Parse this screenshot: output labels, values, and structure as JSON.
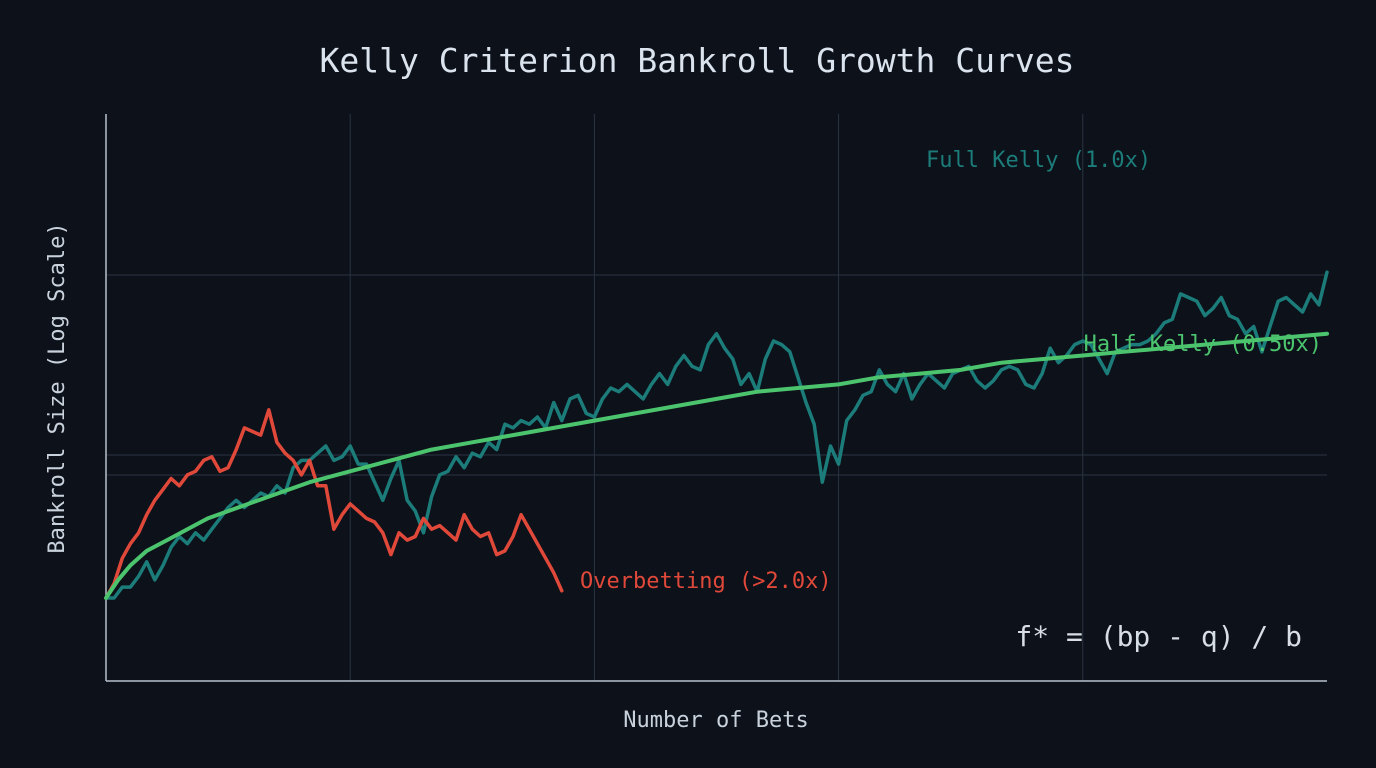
{
  "chart_data": {
    "type": "line",
    "title": "Kelly Criterion Bankroll Growth Curves",
    "xlabel": "Number of Bets",
    "ylabel": "Bankroll Size (Log Scale)",
    "y_scale": "log",
    "xlim": [
      0,
      300
    ],
    "ylim": [
      0,
      100
    ],
    "grid": true,
    "legend": "inline labels at line ends",
    "annotation": "f* = (bp - q) / b",
    "colors": {
      "background": "#0c111a",
      "grid": "#2b3442",
      "axis": "#b8c2cc",
      "full_kelly": "#1c7c7a",
      "half_kelly": "#4cc46e",
      "overbetting": "#e0493a"
    },
    "series": [
      {
        "name": "Full Kelly (1.0x)",
        "color": "#1c7c7a",
        "x": [
          0,
          2,
          4,
          6,
          8,
          10,
          12,
          14,
          16,
          18,
          20,
          22,
          24,
          26,
          28,
          30,
          32,
          34,
          36,
          38,
          40,
          42,
          44,
          46,
          48,
          50,
          52,
          54,
          56,
          58,
          60,
          62,
          64,
          66,
          68,
          70,
          72,
          74,
          76,
          78,
          80,
          82,
          84,
          86,
          88,
          90,
          92,
          94,
          96,
          98,
          100,
          102,
          104,
          106,
          108,
          110,
          112,
          114,
          116,
          118,
          120,
          122,
          124,
          126,
          128,
          130,
          132,
          134,
          136,
          138,
          140,
          142,
          144,
          146,
          148,
          150,
          152,
          154,
          156,
          158,
          160,
          162,
          164,
          166,
          168,
          170,
          172,
          174,
          176,
          178,
          180,
          182,
          184,
          186,
          188,
          190,
          192,
          194,
          196,
          198,
          200,
          202,
          204,
          206,
          208,
          210,
          212,
          214,
          216,
          218,
          220,
          222,
          224,
          226,
          228,
          230,
          232,
          234,
          236,
          238,
          240,
          242,
          244,
          246,
          248,
          250,
          252,
          254,
          256,
          258,
          260,
          262,
          264,
          266,
          268,
          270,
          272,
          274,
          276,
          278,
          280,
          282,
          284,
          286,
          288,
          290,
          292,
          294,
          296,
          298,
          300
        ],
        "values": [
          15,
          15,
          18,
          18,
          21,
          25,
          20,
          24,
          29,
          32,
          30,
          33,
          31,
          34,
          37,
          40,
          42,
          40,
          42,
          44,
          43,
          46,
          44,
          51,
          53,
          53,
          55,
          57,
          53,
          54,
          57,
          52,
          52,
          47,
          42,
          48,
          53,
          42,
          39,
          33,
          43,
          49,
          50,
          54,
          51,
          55,
          54,
          58,
          56,
          63,
          62,
          64,
          63,
          65,
          62,
          69,
          64,
          70,
          71,
          66,
          65,
          70,
          73,
          72,
          74,
          72,
          70,
          74,
          77,
          74,
          79,
          82,
          79,
          78,
          85,
          88,
          84,
          81,
          74,
          77,
          72,
          81,
          86,
          85,
          83,
          76,
          69,
          63,
          47,
          57,
          52,
          64,
          67,
          71,
          72,
          78,
          74,
          72,
          77,
          70,
          74,
          77,
          75,
          73,
          77,
          78,
          79,
          75,
          73,
          75,
          78,
          79,
          78,
          74,
          73,
          77,
          84,
          80,
          82,
          85,
          86,
          85,
          81,
          77,
          83,
          84,
          85,
          85,
          86,
          88,
          91,
          92,
          99,
          98,
          97,
          93,
          95,
          98,
          93,
          92,
          88,
          90,
          83,
          90,
          97,
          98,
          96,
          94,
          99,
          96,
          105
        ]
      },
      {
        "name": "Half Kelly (0.50x)",
        "color": "#4cc46e",
        "x": [
          0,
          3,
          6,
          10,
          15,
          20,
          25,
          30,
          40,
          50,
          60,
          70,
          80,
          90,
          100,
          110,
          120,
          130,
          140,
          150,
          160,
          170,
          180,
          190,
          200,
          210,
          220,
          230,
          240,
          250,
          260,
          270,
          280,
          290,
          300
        ],
        "values": [
          15,
          20,
          24,
          28,
          31,
          34,
          37,
          39,
          43,
          47,
          50,
          53,
          56,
          58,
          60,
          62,
          64,
          66,
          68,
          70,
          72,
          73,
          74,
          76,
          77,
          78,
          80,
          81,
          82,
          83,
          84,
          85,
          86,
          87,
          88
        ]
      },
      {
        "name": "Overbetting (>2.0x)",
        "color": "#e0493a",
        "x": [
          0,
          2,
          4,
          6,
          8,
          10,
          12,
          14,
          16,
          18,
          20,
          22,
          24,
          26,
          28,
          30,
          32,
          34,
          36,
          38,
          40,
          42,
          44,
          46,
          48,
          50,
          52,
          54,
          56,
          58,
          60,
          62,
          64,
          66,
          68,
          70,
          72,
          74,
          76,
          78,
          80,
          82,
          84,
          86,
          88,
          90,
          92,
          94,
          96,
          98,
          100,
          102,
          104,
          106,
          108,
          110,
          112
        ],
        "values": [
          15,
          19,
          26,
          30,
          33,
          38,
          42,
          45,
          48,
          46,
          49,
          50,
          53,
          54,
          50,
          51,
          56,
          62,
          61,
          60,
          67,
          58,
          55,
          53,
          49,
          53,
          46,
          46,
          34,
          38,
          41,
          39,
          37,
          36,
          33,
          27,
          33,
          31,
          32,
          37,
          34,
          35,
          33,
          31,
          38,
          34,
          32,
          33,
          27,
          28,
          32,
          38,
          34,
          30,
          26,
          22,
          17
        ]
      }
    ]
  }
}
